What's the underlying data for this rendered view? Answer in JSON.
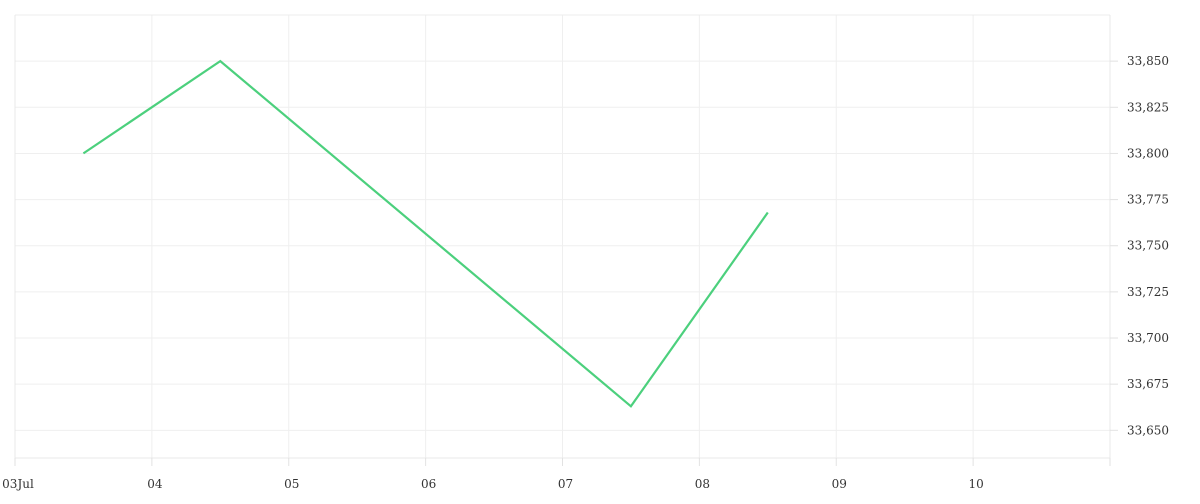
{
  "chart_data": {
    "type": "line",
    "title": "",
    "xlabel": "",
    "ylabel": "",
    "x_ticks": [
      {
        "date": "2023-07-03",
        "label": "03Jul"
      },
      {
        "date": "2023-07-04",
        "label": "04"
      },
      {
        "date": "2023-07-05",
        "label": "05"
      },
      {
        "date": "2023-07-06",
        "label": "06"
      },
      {
        "date": "2023-07-07",
        "label": "07"
      },
      {
        "date": "2023-07-08",
        "label": "08"
      },
      {
        "date": "2023-07-09",
        "label": "09"
      },
      {
        "date": "2023-07-10",
        "label": "10"
      }
    ],
    "y_ticks": [
      {
        "value": 33650,
        "label": "33,650"
      },
      {
        "value": 33675,
        "label": "33,675"
      },
      {
        "value": 33700,
        "label": "33,700"
      },
      {
        "value": 33725,
        "label": "33,725"
      },
      {
        "value": 33750,
        "label": "33,750"
      },
      {
        "value": 33775,
        "label": "33,775"
      },
      {
        "value": 33800,
        "label": "33,800"
      },
      {
        "value": 33825,
        "label": "33,825"
      },
      {
        "value": 33850,
        "label": "33,850"
      }
    ],
    "xlim": [
      "2023-07-03T00:00",
      "2023-07-11T00:00"
    ],
    "ylim": [
      33635,
      33875
    ],
    "grid": true,
    "y_axis_position": "right",
    "series": [
      {
        "color": "#4cd07d",
        "points": [
          {
            "x": "2023-07-03T12:00",
            "y": 33800
          },
          {
            "x": "2023-07-04T12:00",
            "y": 33850
          },
          {
            "x": "2023-07-07T12:00",
            "y": 33663
          },
          {
            "x": "2023-07-08T12:00",
            "y": 33768
          }
        ]
      }
    ]
  }
}
